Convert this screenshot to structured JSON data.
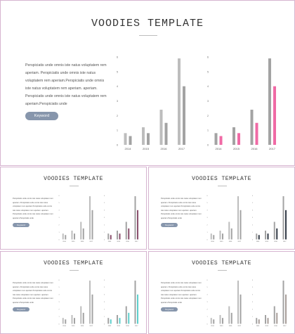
{
  "slides": [
    {
      "title": "VOODIES TEMPLATE",
      "body": "Perspiciatis unde omnis iste natus voluptatem rem aperiam. Perspiciatis unde omnis iste natus voluptatem rem aperiam.Perspiciatis unde omnis iste natus voluptatem rem aperiam. aperiam. Perspiciatis unde omnis iste natus voluptatem rem aperiam.Perspiciatis unde",
      "button": "Keyword",
      "accent": "#f06aa5"
    },
    {
      "title": "VOODIES TEMPLATE",
      "body": "Perspiciatis unde omnis iste natus voluptatem rem aperiam. Perspiciatis unde omnis iste natus voluptatem rem aperiam.Perspiciatis unde omnis iste natus voluptatem rem aperiam. aperiam. Perspiciatis unde omnis iste natus voluptatem rem aperiam.Perspiciatis unde",
      "button": "Keyword",
      "accent": "#8a4f6c"
    },
    {
      "title": "VOODIES TEMPLATE",
      "body": "Perspiciatis unde omnis iste natus voluptatem rem aperiam. Perspiciatis unde omnis iste natus voluptatem rem aperiam.Perspiciatis unde omnis iste natus voluptatem rem aperiam. aperiam. Perspiciatis unde omnis iste natus voluptatem rem aperiam.Perspiciatis unde",
      "button": "Keyword",
      "accent": "#333b47"
    },
    {
      "title": "VOODIES TEMPLATE",
      "body": "Perspiciatis unde omnis iste natus voluptatem rem aperiam. Perspiciatis unde omnis iste natus voluptatem rem aperiam.Perspiciatis unde omnis iste natus voluptatem rem aperiam. aperiam. Perspiciatis unde omnis iste natus voluptatem rem aperiam.Perspiciatis unde",
      "button": "Keyword",
      "accent": "#5ecfcc"
    },
    {
      "title": "VOODIES TEMPLATE",
      "body": "Perspiciatis unde omnis iste natus voluptatem rem aperiam. Perspiciatis unde omnis iste natus voluptatem rem aperiam.Perspiciatis unde omnis iste natus voluptatem rem aperiam. aperiam. Perspiciatis unde omnis iste natus voluptatem rem aperiam.Perspiciatis unde",
      "button": "Keyword",
      "accent": "#a89e9a"
    }
  ],
  "chart_data": [
    {
      "type": "bar",
      "categories": [
        "2014",
        "2015",
        "2016",
        "2017"
      ],
      "ylim": [
        0,
        6
      ],
      "yticks": [
        "0",
        "1",
        "2",
        "3",
        "4",
        "5",
        "6"
      ],
      "series": [
        {
          "values": [
            0.8,
            1.2,
            2.4,
            5.9
          ],
          "color": "#bdbdbd"
        },
        {
          "values": [
            0.6,
            0.8,
            1.5,
            4.0
          ],
          "color": "#a3a3a3"
        }
      ]
    },
    {
      "type": "bar",
      "categories": [
        "2014",
        "2015",
        "2016",
        "2017"
      ],
      "ylim": [
        0,
        6
      ],
      "yticks": [
        "0",
        "1",
        "2",
        "3",
        "4",
        "5",
        "6"
      ],
      "series": [
        {
          "values": [
            0.8,
            1.2,
            2.4,
            5.9
          ],
          "color": "#a3a3a3"
        },
        {
          "values": [
            0.6,
            0.8,
            1.5,
            4.0
          ],
          "color": "accent"
        }
      ]
    }
  ]
}
